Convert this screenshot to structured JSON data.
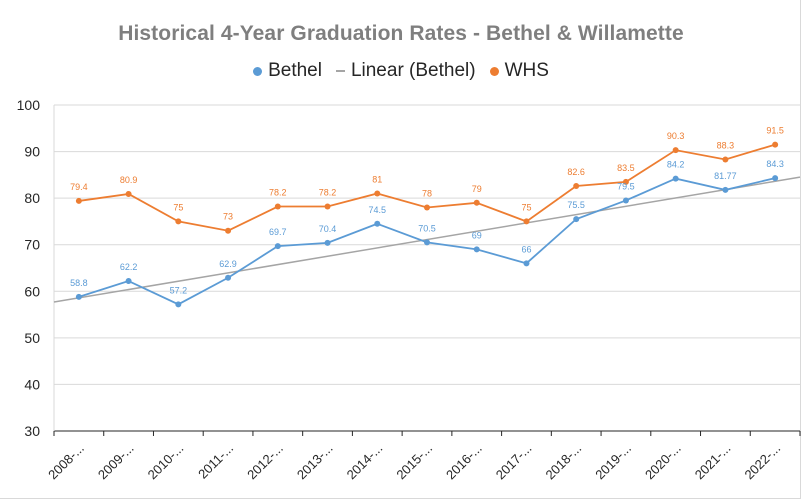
{
  "chart_data": {
    "type": "line",
    "title": "Historical 4-Year Graduation Rates - Bethel & Willamette",
    "categories": [
      "2008-...",
      "2009-...",
      "2010-...",
      "2011-...",
      "2012-...",
      "2013-...",
      "2014-...",
      "2015-...",
      "2016-...",
      "2017-...",
      "2018-...",
      "2019-...",
      "2020-...",
      "2021-...",
      "2022-..."
    ],
    "series": [
      {
        "name": "Bethel",
        "color": "#5b9bd5",
        "values": [
          58.8,
          62.2,
          57.2,
          62.9,
          69.7,
          70.4,
          74.5,
          70.5,
          69,
          66,
          75.5,
          79.5,
          84.2,
          81.77,
          84.3
        ],
        "labels": [
          "58.8",
          "62.2",
          "57.2",
          "62.9",
          "69.7",
          "70.4",
          "74.5",
          "70.5",
          "69",
          "66",
          "75.5",
          "79.5",
          "84.2",
          "81.77",
          "84.3"
        ]
      },
      {
        "name": "WHS",
        "color": "#ed7d31",
        "values": [
          79.4,
          80.9,
          75,
          73,
          78.2,
          78.2,
          81,
          78,
          79,
          75,
          82.6,
          83.5,
          90.3,
          88.3,
          91.5
        ],
        "labels": [
          "79.4",
          "80.9",
          "75",
          "73",
          "78.2",
          "78.2",
          "81",
          "78",
          "79",
          "75",
          "82.6",
          "83.5",
          "90.3",
          "88.3",
          "91.5"
        ]
      }
    ],
    "trendline": {
      "name": "Linear (Bethel)",
      "of_series": "Bethel",
      "type": "linear",
      "color": "#a5a5a5"
    },
    "ylim": [
      30,
      100
    ],
    "yticks": [
      30,
      40,
      50,
      60,
      70,
      80,
      90,
      100
    ],
    "grid": true,
    "legend_position": "top"
  }
}
